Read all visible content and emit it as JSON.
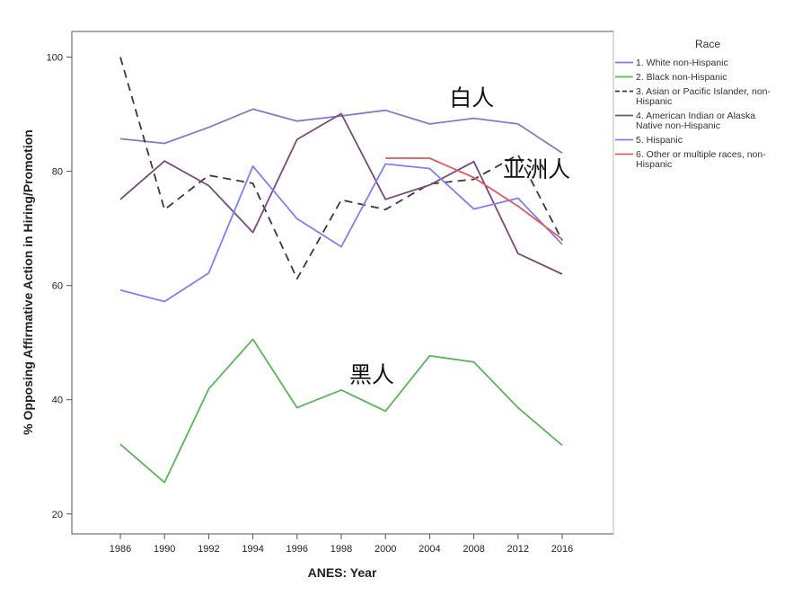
{
  "chart_data": {
    "type": "line",
    "title": "",
    "xlabel": "ANES: Year",
    "ylabel": "% Opposing Affirmative Action in Hiring/Promotion",
    "categories": [
      "1986",
      "1990",
      "1992",
      "1994",
      "1996",
      "1998",
      "2000",
      "2004",
      "2008",
      "2012",
      "2016"
    ],
    "yticks": [
      20,
      40,
      60,
      80,
      100
    ],
    "ylim": [
      16.5,
      104.5
    ],
    "grid": false,
    "legend": {
      "title": "Race",
      "position": "right"
    },
    "series": [
      {
        "name": "1. White non-Hispanic",
        "color": "#7c7ec6",
        "dash": "",
        "values": [
          85.7,
          84.9,
          87.7,
          90.9,
          88.8,
          89.7,
          90.7,
          88.3,
          89.3,
          88.3,
          83.2
        ]
      },
      {
        "name": "2. Black non-Hispanic",
        "color": "#5ab55a",
        "dash": "",
        "values": [
          32.2,
          25.5,
          41.9,
          50.6,
          38.6,
          41.7,
          38.0,
          47.7,
          46.6,
          38.6,
          32.0
        ]
      },
      {
        "name": "3. Asian or Pacific Islander, non-Hispanic",
        "color": "#3a3a3a",
        "dash": "9,6",
        "values": [
          100.0,
          73.3,
          79.3,
          77.9,
          61.2,
          75.0,
          73.3,
          77.8,
          78.6,
          82.9,
          67.9
        ]
      },
      {
        "name": "4. American Indian or Alaska Native non-Hispanic",
        "color": "#7a4a7a",
        "dash": "",
        "values": [
          75.1,
          81.8,
          77.5,
          69.3,
          85.6,
          90.1,
          75.1,
          77.6,
          81.7,
          65.6,
          62.0
        ]
      },
      {
        "name": "5. Hispanic",
        "color": "#7f7ff2",
        "dash": "",
        "values": [
          59.2,
          57.2,
          62.2,
          80.9,
          71.7,
          66.8,
          81.3,
          80.5,
          73.4,
          75.3,
          67.2
        ]
      },
      {
        "name": "6. Other or multiple races, non-Hispanic",
        "color": "#e05a5a",
        "dash": "",
        "values": [
          null,
          null,
          null,
          null,
          null,
          null,
          82.3,
          82.3,
          78.9,
          73.9,
          68.1
        ]
      }
    ],
    "annotations": [
      {
        "text": "白人",
        "x": "2000",
        "y": 91.5
      },
      {
        "text": "亚洲人",
        "x": "2008",
        "y": 79
      },
      {
        "text": "黑人",
        "x": "1998",
        "y": 43
      }
    ]
  }
}
